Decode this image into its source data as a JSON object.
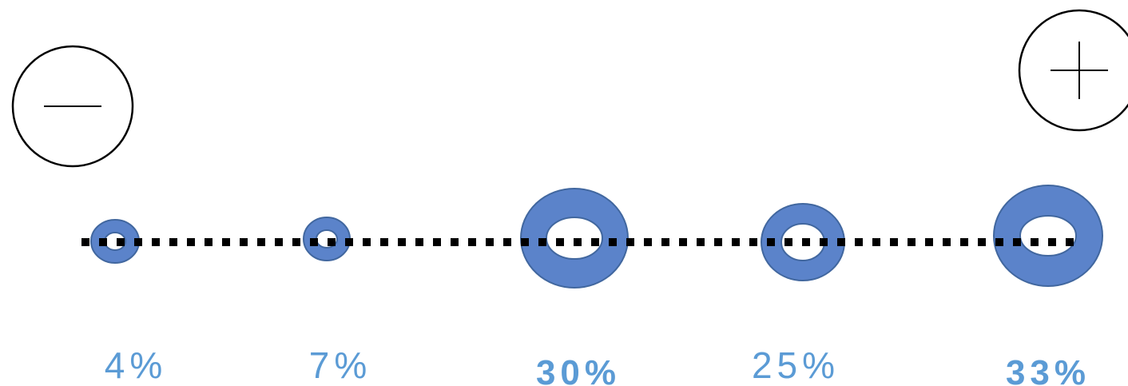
{
  "colors": {
    "ring_fill": "#5b83ca",
    "ring_stroke": "#41679f",
    "label": "#5b9bd5",
    "line": "#000000",
    "symbol": "#000000"
  },
  "end_markers": {
    "minus": {
      "icon": "minus-icon"
    },
    "plus": {
      "icon": "plus-icon"
    }
  },
  "points": [
    {
      "label": "4%",
      "value": 4,
      "emphasis": false
    },
    {
      "label": "7%",
      "value": 7,
      "emphasis": false
    },
    {
      "label": "30%",
      "value": 30,
      "emphasis": true
    },
    {
      "label": "25%",
      "value": 25,
      "emphasis": false
    },
    {
      "label": "33%",
      "value": 33,
      "emphasis": true
    }
  ]
}
